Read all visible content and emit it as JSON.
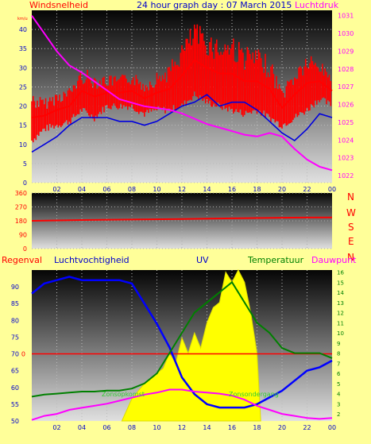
{
  "header": {
    "left_label": "Windsnelheid",
    "left_unit": "km/u",
    "title": "24 hour graph day : 07 March 2015",
    "right_label": "Luchtdruk"
  },
  "lower_header": {
    "regenval": "Regenval",
    "luchtvochtigheid": "Luchtvochtigheid",
    "uv": "UV",
    "temperatuur": "Temperatuur",
    "dauwpunt": "Dauwpunt"
  },
  "annotations": {
    "sunrise": "Zonsopkomst",
    "sunset": "Zonsondergang"
  },
  "compass": [
    "N",
    "W",
    "S",
    "E",
    "N"
  ],
  "colors": {
    "page_bg": "#ffff99",
    "wind": "#ff0000",
    "gust_avg": "#0000dd",
    "pressure": "#ff00ff",
    "humidity": "#0000ff",
    "temperature": "#008000",
    "dewpoint": "#ff00ff",
    "uv": "#ffff00",
    "rain": "#ff0000",
    "label_red": "#ff0000",
    "label_blue": "#0000cc",
    "label_magenta": "#ff00ff",
    "label_green": "#008000"
  },
  "chart_data": [
    {
      "type": "line",
      "name": "wind-pressure",
      "x_ticks": [
        "02",
        "04",
        "06",
        "08",
        "10",
        "12",
        "14",
        "16",
        "18",
        "20",
        "22",
        "00"
      ],
      "x_range": [
        0,
        24
      ],
      "ylim": [
        0,
        45
      ],
      "y_ticks": [
        0,
        5,
        10,
        15,
        20,
        25,
        30,
        35,
        40
      ],
      "y2lim": [
        1021.6,
        1031.3
      ],
      "y2_ticks": [
        1022,
        1023,
        1024,
        1025,
        1026,
        1027,
        1028,
        1029,
        1030,
        1031
      ],
      "grid": true,
      "series": [
        {
          "axis": "left",
          "style": "band",
          "x": [
            0,
            1,
            2,
            3,
            4,
            5,
            6,
            7,
            8,
            9,
            10,
            11,
            12,
            13,
            14,
            15,
            16,
            17,
            18,
            19,
            20,
            21,
            22,
            23,
            24
          ],
          "low": [
            10,
            13,
            14,
            15,
            18,
            16,
            19,
            19,
            19,
            17,
            18,
            18,
            19,
            22,
            20,
            19,
            18,
            17,
            18,
            16,
            14,
            16,
            18,
            21,
            19
          ],
          "high": [
            24,
            22,
            24,
            25,
            30,
            29,
            28,
            28,
            29,
            27,
            29,
            31,
            37,
            42,
            40,
            38,
            39,
            36,
            35,
            33,
            25,
            30,
            34,
            32,
            29
          ]
        },
        {
          "axis": "left",
          "x": [
            0,
            1,
            2,
            3,
            4,
            5,
            6,
            7,
            8,
            9,
            10,
            11,
            12,
            13,
            14,
            15,
            16,
            17,
            18,
            19,
            20,
            21,
            22,
            23,
            24
          ],
          "y": [
            8,
            10,
            12,
            15,
            17,
            17,
            17,
            16,
            16,
            15,
            16,
            18,
            20,
            21,
            23,
            20,
            21,
            21,
            19,
            16,
            13,
            11,
            14,
            18,
            17
          ]
        },
        {
          "axis": "right",
          "x": [
            0,
            1,
            2,
            3,
            4,
            5,
            6,
            7,
            8,
            9,
            10,
            11,
            12,
            13,
            14,
            15,
            16,
            17,
            18,
            19,
            20,
            21,
            22,
            23,
            24
          ],
          "y": [
            1031,
            1030,
            1029,
            1028.2,
            1027.8,
            1027.3,
            1026.8,
            1026.3,
            1026.1,
            1025.9,
            1025.8,
            1025.7,
            1025.5,
            1025.2,
            1024.9,
            1024.7,
            1024.5,
            1024.3,
            1024.2,
            1024.4,
            1024.2,
            1023.5,
            1022.9,
            1022.5,
            1022.3
          ]
        }
      ]
    },
    {
      "type": "line",
      "name": "wind-direction",
      "x_range": [
        0,
        24
      ],
      "ylim": [
        0,
        360
      ],
      "y_ticks": [
        0,
        90,
        180,
        270,
        360
      ],
      "series": [
        {
          "x": [
            0,
            4,
            8,
            12,
            16,
            20,
            24
          ],
          "y": [
            180,
            185,
            188,
            192,
            196,
            200,
            202
          ]
        }
      ]
    },
    {
      "type": "line",
      "name": "humidity-temp-uv",
      "x_ticks": [
        "02",
        "04",
        "06",
        "08",
        "10",
        "12",
        "14",
        "16",
        "18",
        "20",
        "22",
        "00"
      ],
      "x_range": [
        0,
        24
      ],
      "ylim": [
        50,
        95
      ],
      "y_ticks": [
        50,
        55,
        60,
        65,
        70,
        75,
        80,
        85,
        90
      ],
      "y2lim": [
        1.3,
        16.2
      ],
      "y2_ticks": [
        2,
        3,
        4,
        5,
        6,
        7,
        8,
        9,
        10,
        11,
        12,
        13,
        14,
        15,
        16
      ],
      "rain_level": "0",
      "grid": true,
      "series": [
        {
          "axis": "left",
          "x": [
            0,
            1,
            2,
            3,
            4,
            5,
            6,
            7,
            8,
            9,
            10,
            11,
            12,
            13,
            14,
            15,
            16,
            17,
            18,
            19,
            20,
            21,
            22,
            23,
            24
          ],
          "y": [
            88,
            91,
            92,
            93,
            92,
            92,
            92,
            92,
            91,
            85,
            79,
            72,
            63,
            58,
            55,
            54,
            54,
            54,
            55,
            57,
            59,
            62,
            65,
            66,
            68
          ]
        },
        {
          "axis": "right",
          "x": [
            0,
            1,
            2,
            3,
            4,
            5,
            6,
            7,
            8,
            9,
            10,
            11,
            12,
            13,
            14,
            15,
            16,
            17,
            18,
            19,
            20,
            21,
            22,
            23,
            24
          ],
          "y": [
            3.7,
            3.9,
            4.0,
            4.1,
            4.2,
            4.2,
            4.3,
            4.3,
            4.5,
            5,
            6,
            8,
            10,
            12,
            13,
            14,
            15,
            13,
            11,
            10,
            8.5,
            8,
            8,
            8,
            7.5
          ]
        },
        {
          "axis": "right",
          "x": [
            0,
            1,
            2,
            3,
            4,
            5,
            6,
            7,
            8,
            9,
            10,
            11,
            12,
            13,
            14,
            15,
            16,
            17,
            18,
            19,
            20,
            21,
            22,
            23,
            24
          ],
          "y": [
            1.4,
            1.8,
            2,
            2.4,
            2.6,
            2.8,
            3,
            3.3,
            3.6,
            3.9,
            4.1,
            4.4,
            4.4,
            4.2,
            4.1,
            4.0,
            3.8,
            3.4,
            2.8,
            2.4,
            2.0,
            1.8,
            1.6,
            1.5,
            1.6
          ]
        },
        {
          "axis": "right",
          "style": "filled",
          "x": [
            7.2,
            8,
            9,
            10,
            10.5,
            11,
            11.5,
            12,
            12.5,
            13,
            13.5,
            14,
            14.5,
            15,
            15.5,
            16,
            16.5,
            17,
            17.5,
            18,
            18.3
          ],
          "y": [
            1.3,
            3.5,
            5,
            6,
            6.5,
            8,
            7,
            9.5,
            8,
            10,
            8.5,
            11,
            12.5,
            13,
            16,
            15,
            16.2,
            15,
            12,
            8,
            1.3
          ]
        }
      ]
    }
  ]
}
